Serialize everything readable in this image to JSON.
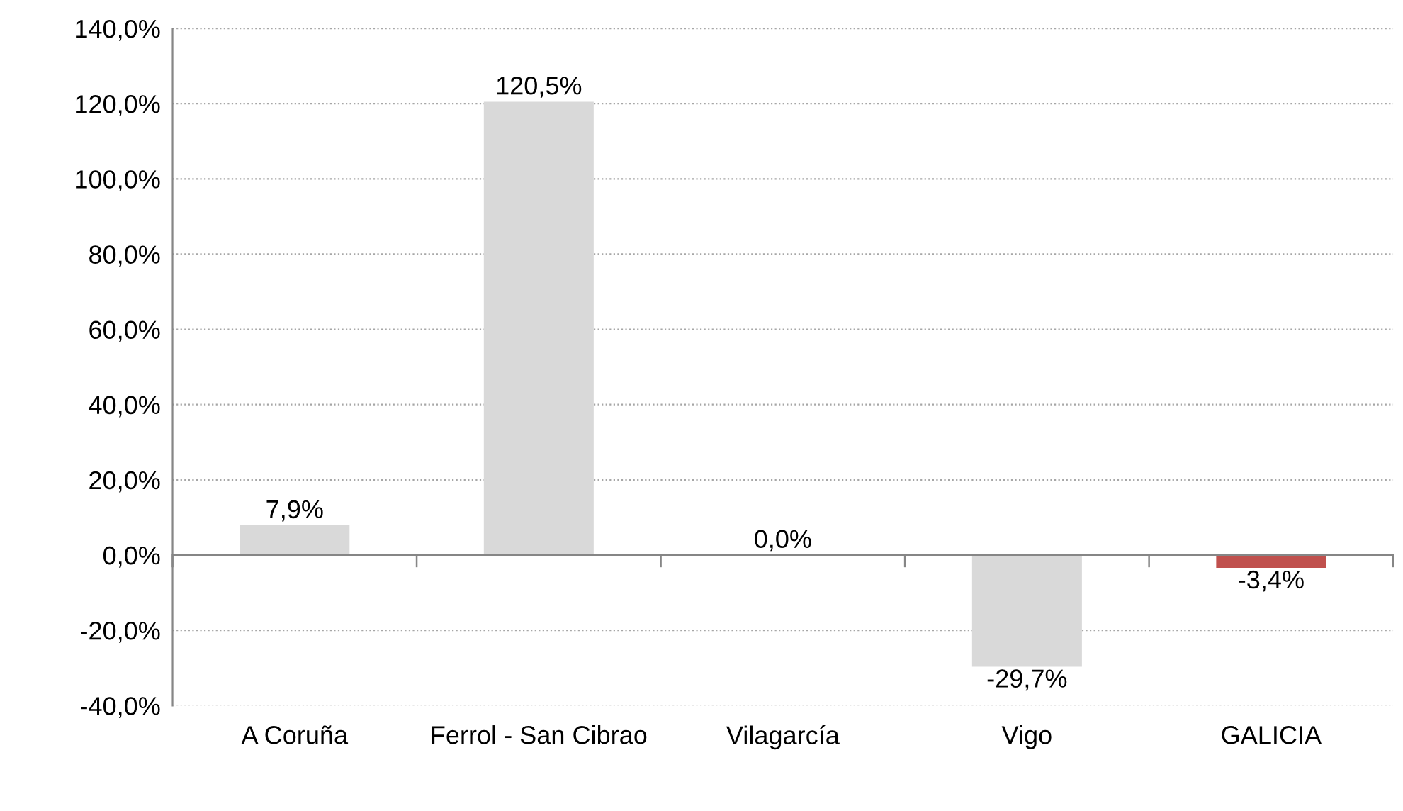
{
  "chart_data": {
    "type": "bar",
    "categories": [
      "A Coruña",
      "Ferrol - San Cibrao",
      "Vilagarcía",
      "Vigo",
      "GALICIA"
    ],
    "values": [
      7.9,
      120.5,
      0.0,
      -29.7,
      -3.4
    ],
    "colors": [
      "#d9d9d9",
      "#d9d9d9",
      "#d9d9d9",
      "#d9d9d9",
      "#c0504d"
    ],
    "value_labels": [
      "7,9%",
      "120,5%",
      "0,0%",
      "-29,7%",
      "-3,4%"
    ],
    "ylim": [
      -40,
      140
    ],
    "yticks": [
      {
        "value": -40,
        "label": "-40,0%"
      },
      {
        "value": -20,
        "label": "-20,0%"
      },
      {
        "value": 0,
        "label": "0,0%"
      },
      {
        "value": 20,
        "label": "20,0%"
      },
      {
        "value": 40,
        "label": "40,0%"
      },
      {
        "value": 60,
        "label": "60,0%"
      },
      {
        "value": 80,
        "label": "80,0%"
      },
      {
        "value": 100,
        "label": "100,0%"
      },
      {
        "value": 120,
        "label": "120,0%"
      },
      {
        "value": 140,
        "label": "140,0%"
      }
    ],
    "grid": "y"
  }
}
